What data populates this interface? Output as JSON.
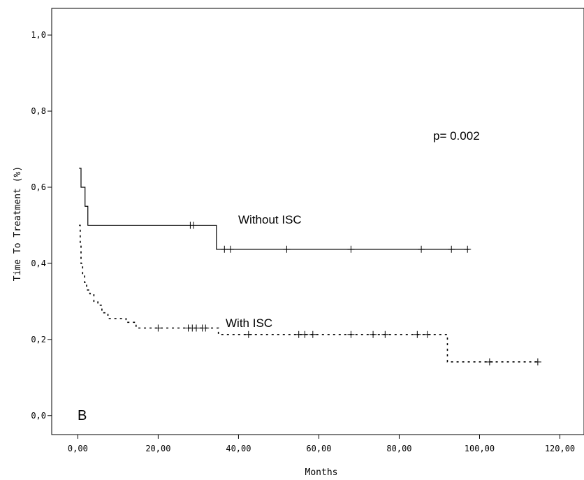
{
  "chart_data": {
    "type": "line",
    "xlabel": "Months",
    "ylabel": "Time To Treatment (%)",
    "xlim": [
      -6.5,
      126
    ],
    "ylim": [
      -0.05,
      1.07
    ],
    "x_ticks": [
      0,
      20,
      40,
      60,
      80,
      100,
      120
    ],
    "x_tick_labels": [
      "0,00",
      "20,00",
      "40,00",
      "60,00",
      "80,00",
      "100,00",
      "120,00"
    ],
    "y_ticks": [
      0.0,
      0.2,
      0.4,
      0.6,
      0.8,
      1.0
    ],
    "y_tick_labels": [
      "0,0",
      "0,2",
      "0,4",
      "0,6",
      "0,8",
      "1,0"
    ],
    "grid": false,
    "annotations": {
      "p_value": "p= 0.002",
      "panel_label": "B"
    },
    "series": [
      {
        "name": "Without ISC",
        "style": "solid",
        "steps": [
          [
            0.3,
            0.65
          ],
          [
            0.8,
            0.6
          ],
          [
            1.8,
            0.55
          ],
          [
            2.5,
            0.5
          ],
          [
            34.5,
            0.437
          ],
          [
            97.5,
            0.437
          ]
        ],
        "censored": [
          28.0,
          28.8,
          36.5,
          38.0,
          52.0,
          68.0,
          85.5,
          93.0,
          97.0
        ]
      },
      {
        "name": "With ISC",
        "style": "dotted",
        "steps": [
          [
            0.3,
            0.5
          ],
          [
            0.6,
            0.45
          ],
          [
            0.8,
            0.4
          ],
          [
            1.2,
            0.37
          ],
          [
            1.7,
            0.35
          ],
          [
            2.2,
            0.33
          ],
          [
            3.0,
            0.32
          ],
          [
            4.0,
            0.3
          ],
          [
            5.0,
            0.29
          ],
          [
            6.0,
            0.27
          ],
          [
            7.5,
            0.255
          ],
          [
            12.0,
            0.245
          ],
          [
            14.5,
            0.23
          ],
          [
            35.0,
            0.213
          ],
          [
            92.0,
            0.141
          ],
          [
            115.0,
            0.141
          ]
        ],
        "censored": [
          20.0,
          27.5,
          28.5,
          29.5,
          31.0,
          31.8,
          42.5,
          55.0,
          56.5,
          58.5,
          68.0,
          73.5,
          76.5,
          84.5,
          87.0,
          102.5,
          114.5
        ]
      }
    ]
  },
  "series_labels": {
    "without_isc": "Without ISC",
    "with_isc": "With ISC"
  }
}
